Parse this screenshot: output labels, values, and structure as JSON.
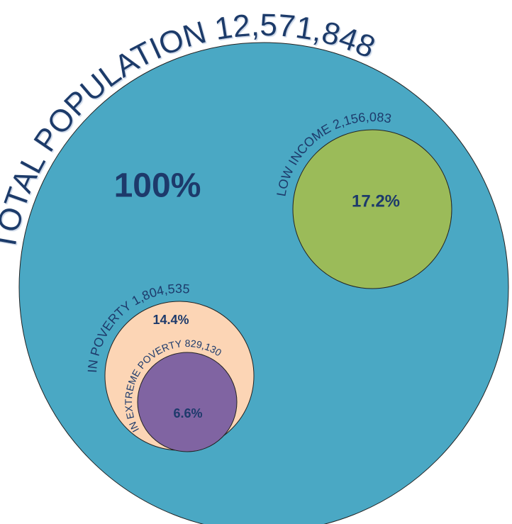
{
  "circles": [
    {
      "label": "TOTAL POPULATION",
      "count": "12,571,848",
      "percent": "100%"
    },
    {
      "label": "LOW INCOME",
      "count": "2,156,083",
      "percent": "17.2%"
    },
    {
      "label": "IN POVERTY",
      "count": "1,804,535",
      "percent": "14.4%"
    },
    {
      "label": "IN EXTREME POVERTY",
      "count": "829,130",
      "percent": "6.6%"
    }
  ]
}
